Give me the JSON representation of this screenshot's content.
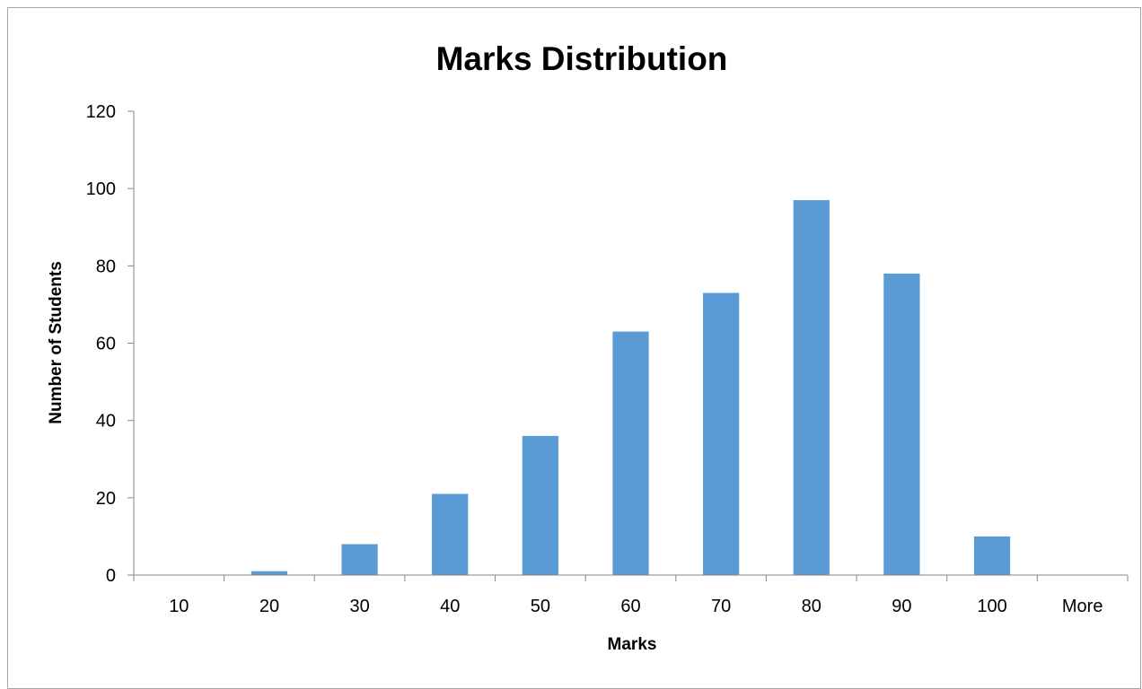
{
  "chart_data": {
    "type": "bar",
    "title": "Marks Distribution",
    "xlabel": "Marks",
    "ylabel": "Number of Students",
    "categories": [
      "10",
      "20",
      "30",
      "40",
      "50",
      "60",
      "70",
      "80",
      "90",
      "100",
      "More"
    ],
    "values": [
      0,
      1,
      8,
      21,
      36,
      63,
      73,
      97,
      78,
      10,
      0
    ],
    "ylim": [
      0,
      120
    ],
    "yticks": [
      0,
      20,
      40,
      60,
      80,
      100,
      120
    ],
    "grid": false,
    "legend": "none",
    "bar_color": "#5b9bd5",
    "axis_color": "#868686"
  }
}
